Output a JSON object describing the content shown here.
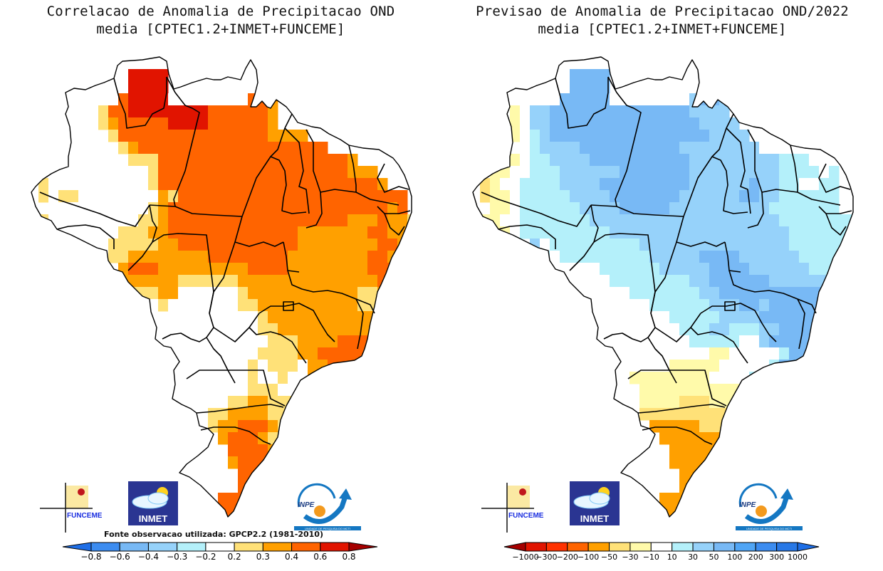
{
  "panels": [
    {
      "id": "correlation",
      "title_line1": "Correlacao de Anomalia de Precipitacao OND",
      "title_line2": "media [CPTEC1.2+INMET+FUNCEME]",
      "source_note": "Fonte observacao utilizada: GPCP2.2 (1981-2010)",
      "colorbar": {
        "colors": [
          "#1e6ee6",
          "#3c8cf0",
          "#78b9f5",
          "#96d2fa",
          "#b4f0fa",
          "#ffffff",
          "#ffe178",
          "#ffa000",
          "#ff6400",
          "#e11400",
          "#a50000"
        ],
        "labels": [
          "-0.8",
          "-0.6",
          "-0.4",
          "-0.3",
          "-0.2",
          "0.2",
          "0.3",
          "0.4",
          "0.6",
          "0.8"
        ]
      },
      "classes": {
        "W": "#ffffff",
        "Y": "#ffe178",
        "O": "#ffa000",
        "R": "#ff6400",
        "D": "#e11400"
      },
      "grid_rows": [
        "......................................",
        "..........DDDD........................",
        "..........DDDD.....WWW................",
        ".........RDDDDWWWWWWWWRRO.............",
        ".......YRRDDDDDDDDRRRRRRO.............",
        ".......YORRRRRDDDDRRRRRRO.............",
        "........YRRRRRRRRRRRRRRROOOO...........",
        ".........YORRRRRRRRRRRRRRRRRRR........",
        "..........YYYRRRRRRRRRRRRRRRRRRRO.....",
        "..WW..WWWWWWYRRRRRRRRRRRRRRRRRRROOO...",
        ".YWWWWWWWWWWYRRRRRRRRRRRRRRRRRRRRRRO..",
        ".YWYYWWWWWWWWOYRRRRRRRRRRRRRRRRRRRRRRR.",
        "..WWWWWWWWWWYORRRRRRRRRRRRRRRRRRRRRROR.",
        ".YWWWWWWWWWYYORRRRRRRRRRRRRRRRRROOOROOY",
        "..WWWWWWWYYYOORRRRRRRRRRRRROOOOOOORROOY",
        "......WWYYYYYOORRRRRRRRRRRROOOOOOOORROY.",
        ".......WYYOOOOOOOORRRRRRRROOOOOOOORROY..",
        ".........ORRROOOOOOOOORRRROOOOOOOORRRO..",
        ".........OOOOOOYYYYYYOOOOOOOOOOOOOORRO..",
        "..........YYYOOWWWWWWYOOOOOOOOOOOYYORR..",
        "...........WWYWWWWWWWYYOOOOOOOOOOYYORR..",
        "..............WWWWWWWWWYOOOOOOOOOOOORR..",
        "..............WWWWWWWWWYYOOOOOOOOOOOR...",
        "..............WWWWWWWWWWYYYOOOORRRORR...",
        "...............WWWWWWWWYYYYOORRRRRRRR...",
        "...............WWWWWWWYWYYYWOORRRRRRR...",
        "................WWWWWWYWWYWWOOORRRRRR...",
        ".................WWWWWYYYWWWWOORRRROR...",
        ".................WWWYYOOYYYWWYYRRRRR....",
        ".................WYYOOOOYYYYWWWYYOOO....",
        "..................YOORRROYYYYWWWWWYY....",
        "...................ORRROYYYYYWWW........",
        "....................RRRROOYYY...........",
        "....................ORRRRRROY...........",
        ".....................RRRRRROO...........",
        ".....................RRRRRRRR...........",
        "...................RRRRRRRRR............",
        "..................RRRRRDRRR.............",
        "..................RRRRDDDR..............",
        "...................RRRDDDD..............",
        "......................DDR..............."
      ]
    },
    {
      "id": "forecast",
      "title_line1": "Previsao de Anomalia de Precipitacao OND/2022",
      "title_line2": "media [CPTEC1.2+INMET+FUNCEME]",
      "colorbar": {
        "colors": [
          "#a50000",
          "#e11400",
          "#ff3200",
          "#ff6400",
          "#ffa000",
          "#ffe178",
          "#fffaaa",
          "#ffffff",
          "#b4f0fa",
          "#96d2fa",
          "#78b9f5",
          "#50a5f5",
          "#3c8cf0",
          "#2878e6",
          "#1e6ee6"
        ],
        "labels": [
          "-1000",
          "-300",
          "-200",
          "-100",
          "-50",
          "-30",
          "-10",
          "10",
          "30",
          "50",
          "100",
          "200",
          "300",
          "1000"
        ]
      },
      "classes": {
        "W": "#ffffff",
        "p": "#fffaaa",
        "y": "#ffe178",
        "o": "#ffa000",
        "c": "#b4f0fa",
        "l": "#96d2fa",
        "b": "#78b9f5",
        "B": "#50a5f5"
      },
      "grid_rows": [
        "......................................",
        "..........bbbb........................",
        "..........bbbb.....WWW................",
        ".........bbbbbWWWWWWWWlbbl............",
        "....pWllbbbbbbbbbbbbbbllll............",
        "....pWllbbbbbbbbbbbbbbbllll...........",
        "....pWclbbbbbbbbbbbbbbbbllll...........",
        ".....WcllllbbbbbbbbbbllllllllW........",
        "....pWccllllbbbbbbbbbblllllllllcccW...",
        "..ppWWcccllllllbbbbbbblllllllllccccWc.",
        ".ypWWccccllllbbbbbbbbbllllllbllccWWcc.",
        ".yppWcccccllllbbbbbbbllllllbbllcccccc.",
        "..ppWccccccllllbbbbbllllllllllccccccc.",
        ".ppWWccccccclllllllllllllllllllcccccccc",
        "..ppWcccccccccllllllllllllllllllcccccc.",
        "......lWccccccccclllllllllllllllcccccc.",
        ".......cWccccccccclllllbbbbllllllccccc..",
        ".........WWWWcccccclllllbbbbllllllcccc..",
        ".........WWWWWccccccccllbbbbbbllllllcc..",
        "..........WWWWWWcccccccllbbbbbbbbbbbl..",
        "...........WWWWWWWcccccclllbblbbbbbbbb..",
        "..............WWWWWWcccccllllbbbbbbbbb..",
        "..............WWWWWWWcccllcccllbbbbbbb..",
        "..............WWWWWWWWcccccWWlbbbbbbbB..",
        "...............WWWWWWWWWppWWWWWcbbbBBB..",
        "...............WWWWWpppppWWWWWcbbbbBBB..",
        "................ppppppppWWWWccbbbbbbbb...",
        ".................ppppppppppWWclbbbbbbbb..",
        ".................ppppyyyppppWWccccbbbb..",
        ".................yyyyyyyyyyyyppWWWWcWW...",
        "..................oooooyyyooooyyppWW....",
        "...................oooooooooooyy........",
        "....................oooooooyyy..........",
        "....................oooooooooy..........",
        ".....................ooooooooy..........",
        ".....................oooooooyy..........",
        "...................ooooooooyy...........",
        "..................oooooooyyy............",
        "..................ooooooyyy.............",
        "...................ooooyyyy.............",
        "......................yyy..............."
      ]
    }
  ],
  "logos": {
    "funceme": "FUNCEME",
    "inmet": "INMET",
    "inpe": "INPE",
    "inpe_caption": "UNIDADE DE PESQUISA DO MCTI"
  }
}
